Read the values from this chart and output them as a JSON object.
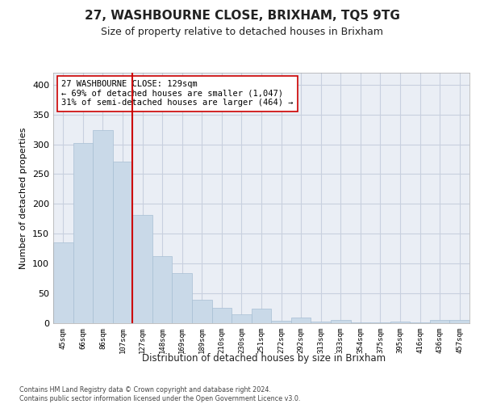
{
  "title": "27, WASHBOURNE CLOSE, BRIXHAM, TQ5 9TG",
  "subtitle": "Size of property relative to detached houses in Brixham",
  "xlabel": "Distribution of detached houses by size in Brixham",
  "ylabel": "Number of detached properties",
  "footer_line1": "Contains HM Land Registry data © Crown copyright and database right 2024.",
  "footer_line2": "Contains public sector information licensed under the Open Government Licence v3.0.",
  "categories": [
    "45sqm",
    "66sqm",
    "86sqm",
    "107sqm",
    "127sqm",
    "148sqm",
    "169sqm",
    "189sqm",
    "210sqm",
    "230sqm",
    "251sqm",
    "272sqm",
    "292sqm",
    "313sqm",
    "333sqm",
    "354sqm",
    "375sqm",
    "395sqm",
    "416sqm",
    "436sqm",
    "457sqm"
  ],
  "values": [
    135,
    302,
    324,
    271,
    181,
    112,
    84,
    39,
    26,
    15,
    25,
    4,
    9,
    3,
    5,
    1,
    1,
    3,
    1,
    5,
    5
  ],
  "bar_color": "#c9d9e8",
  "bar_edge_color": "#a8bfd4",
  "highlight_line_color": "#cc0000",
  "annotation_line1": "27 WASHBOURNE CLOSE: 129sqm",
  "annotation_line2": "← 69% of detached houses are smaller (1,047)",
  "annotation_line3": "31% of semi-detached houses are larger (464) →",
  "annotation_box_color": "#ffffff",
  "annotation_box_edge_color": "#cc0000",
  "ylim_max": 420,
  "yticks": [
    0,
    50,
    100,
    150,
    200,
    250,
    300,
    350,
    400
  ],
  "grid_color": "#c8d0df",
  "bg_color": "#eaeef5",
  "title_fontsize": 11,
  "subtitle_fontsize": 9,
  "annotation_fontsize": 7.5,
  "highlight_bar_index": 4
}
